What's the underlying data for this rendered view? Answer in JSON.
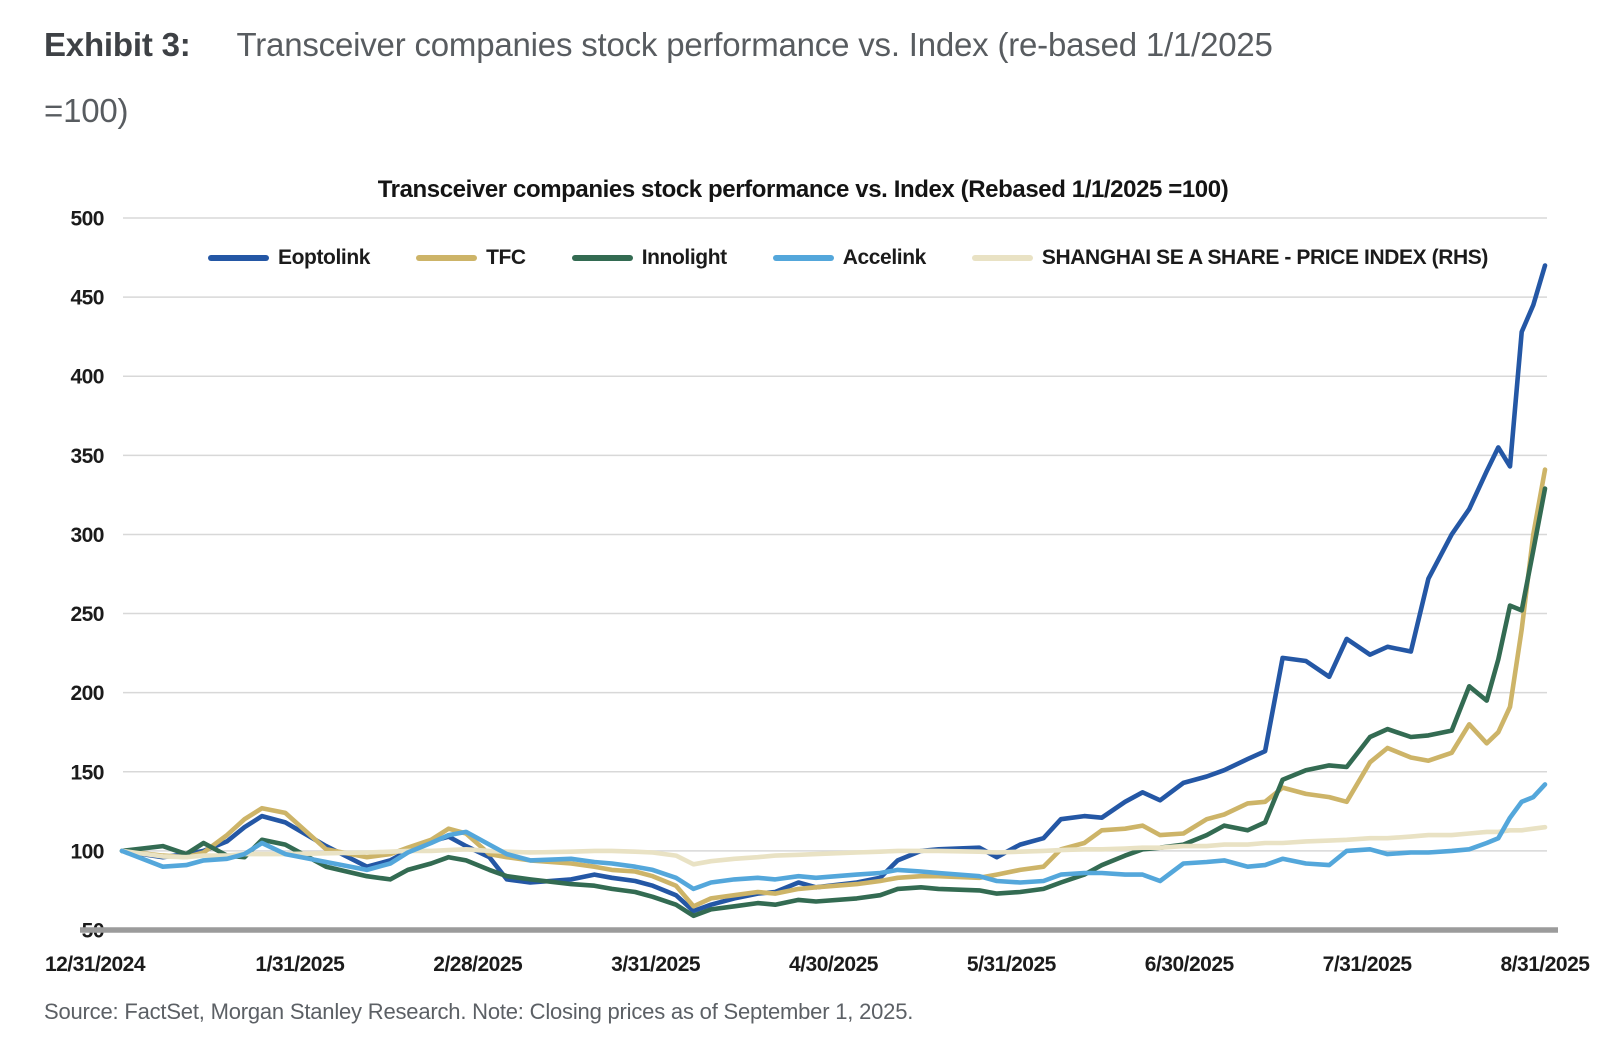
{
  "header": {
    "exhibit_label": "Exhibit 3:",
    "exhibit_title": "Transceiver companies stock performance vs. Index (re-based 1/1/2025\n=100)"
  },
  "footer": {
    "source_note": "Source: FactSet, Morgan Stanley Research. Note: Closing prices as of September 1, 2025."
  },
  "palette": {
    "gridline": "#D8D8D8",
    "axis_line": "#9B9B9B",
    "title_color": "#141414",
    "tick_label_color": "#1b1b1b",
    "header_label_color": "#3e4145",
    "header_title_color": "#585c60",
    "source_color": "#5c6065"
  },
  "chart_data": {
    "type": "line",
    "title": "Transceiver companies stock performance vs. Index (Rebased 1/1/2025 =100)",
    "xlabel": "",
    "ylabel": "",
    "ylim": [
      50,
      500
    ],
    "grid": "horizontal",
    "legend_position": "top",
    "y_axis": {
      "ticks": [
        50,
        100,
        150,
        200,
        250,
        300,
        350,
        400,
        450,
        500
      ]
    },
    "x_axis": {
      "tick_labels": [
        "12/31/2024",
        "1/31/2025",
        "2/28/2025",
        "3/31/2025",
        "4/30/2025",
        "5/31/2025",
        "6/30/2025",
        "7/31/2025",
        "8/31/2025"
      ]
    },
    "x_days": [
      0,
      7,
      11,
      14,
      18,
      21,
      24,
      28,
      35,
      42,
      46,
      49,
      53,
      56,
      59,
      63,
      66,
      70,
      77,
      81,
      84,
      88,
      91,
      95,
      98,
      101,
      105,
      109,
      112,
      116,
      119,
      126,
      130,
      133,
      137,
      140,
      147,
      150,
      154,
      158,
      161,
      165,
      168,
      172,
      175,
      178,
      182,
      186,
      189,
      193,
      196,
      199,
      203,
      207,
      210,
      214,
      217,
      221,
      224,
      228,
      231,
      234,
      236,
      238,
      240,
      242,
      244
    ],
    "series": [
      {
        "id": "eoptolink",
        "name": "Eoptolink",
        "color": "#2457A5",
        "values": [
          100,
          96,
          98,
          100,
          106,
          115,
          122,
          118,
          103,
          90,
          94,
          100,
          106,
          109,
          103,
          96,
          82,
          80,
          82,
          85,
          83,
          81,
          78,
          72,
          62,
          66,
          70,
          73,
          74,
          80,
          77,
          80,
          83,
          94,
          100,
          101,
          102,
          96,
          104,
          108,
          120,
          122,
          121,
          131,
          137,
          132,
          143,
          147,
          151,
          158,
          163,
          222,
          220,
          210,
          234,
          224,
          229,
          226,
          272,
          300,
          316,
          340,
          355,
          343,
          428,
          445,
          470
        ]
      },
      {
        "id": "tfc",
        "name": "TFC",
        "color": "#CDB468",
        "values": [
          100,
          97,
          96,
          99,
          110,
          120,
          127,
          124,
          101,
          96,
          98,
          102,
          107,
          114,
          111,
          98,
          96,
          94,
          92,
          90,
          88,
          87,
          84,
          78,
          65,
          70,
          72,
          74,
          73,
          76,
          77,
          79,
          81,
          83,
          84,
          84,
          83,
          85,
          88,
          90,
          101,
          105,
          113,
          114,
          116,
          110,
          111,
          120,
          123,
          130,
          131,
          140,
          136,
          134,
          131,
          156,
          165,
          159,
          157,
          162,
          180,
          168,
          175,
          191,
          240,
          300,
          341
        ]
      },
      {
        "id": "innolight",
        "name": "Innolight",
        "color": "#336B52",
        "values": [
          100,
          103,
          98,
          105,
          97,
          96,
          107,
          104,
          90,
          84,
          82,
          88,
          92,
          96,
          94,
          88,
          84,
          82,
          79,
          78,
          76,
          74,
          71,
          66,
          59,
          63,
          65,
          67,
          66,
          69,
          68,
          70,
          72,
          76,
          77,
          76,
          75,
          73,
          74,
          76,
          80,
          85,
          91,
          97,
          101,
          102,
          104,
          110,
          116,
          113,
          118,
          145,
          151,
          154,
          153,
          172,
          177,
          172,
          173,
          176,
          204,
          195,
          221,
          255,
          252,
          290,
          329
        ]
      },
      {
        "id": "accelink",
        "name": "Accelink",
        "color": "#54A7DB",
        "values": [
          100,
          90,
          91,
          94,
          95,
          98,
          105,
          98,
          93,
          88,
          92,
          99,
          105,
          110,
          112,
          104,
          98,
          94,
          95,
          93,
          92,
          90,
          88,
          83,
          76,
          80,
          82,
          83,
          82,
          84,
          83,
          85,
          86,
          88,
          87,
          86,
          84,
          81,
          80,
          81,
          85,
          86,
          86,
          85,
          85,
          81,
          92,
          93,
          94,
          90,
          91,
          95,
          92,
          91,
          100,
          101,
          98,
          99,
          99,
          100,
          101,
          105,
          108,
          121,
          131,
          134,
          142
        ]
      },
      {
        "id": "shanghai-index",
        "name": "SHANGHAI SE A SHARE - PRICE INDEX (RHS)",
        "color": "#E9E2C4",
        "values": [
          100,
          96.5,
          96,
          97,
          97,
          98,
          98,
          98,
          98.5,
          99,
          99.5,
          100,
          100,
          100.5,
          101,
          100,
          99.5,
          99,
          99.5,
          100,
          100,
          99.5,
          99,
          97,
          91.5,
          93.5,
          95,
          96,
          97,
          97.5,
          98,
          99,
          99.5,
          100,
          100,
          100,
          99.5,
          99,
          99.5,
          100,
          100.5,
          101,
          101,
          101.5,
          102,
          102,
          103,
          103,
          104,
          104,
          105,
          105,
          106,
          106.5,
          107,
          108,
          108,
          109,
          110,
          110,
          111,
          112,
          112,
          113,
          113,
          114,
          115
        ]
      }
    ]
  }
}
